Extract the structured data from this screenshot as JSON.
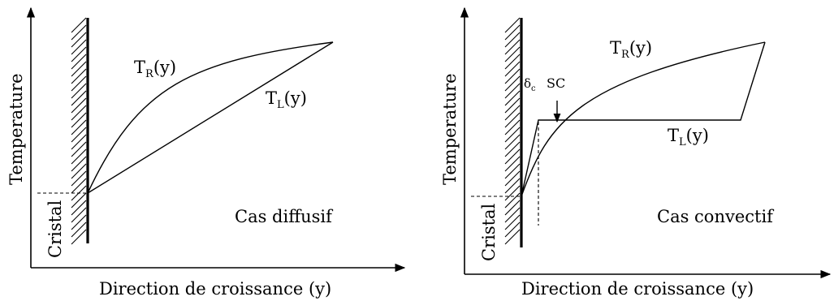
{
  "left_panel": {
    "y_axis_label": "Temperature",
    "x_axis_label": "Direction de croissance (y)",
    "crystal_label": "Cristal",
    "case_label": "Cas diffusif",
    "curve_TR": {
      "main": "T",
      "sub": "R",
      "arg": "(y)"
    },
    "curve_TL": {
      "main": "T",
      "sub": "L",
      "arg": "(y)"
    }
  },
  "right_panel": {
    "y_axis_label": "Temperature",
    "x_axis_label": "Direction de croissance (y)",
    "crystal_label": "Cristal",
    "case_label": "Cas convectif",
    "delta_label": {
      "main": "δ",
      "sub": "c"
    },
    "sc_label": "SC",
    "curve_TR": {
      "main": "T",
      "sub": "R",
      "arg": "(y)"
    },
    "curve_TL": {
      "main": "T",
      "sub": "L",
      "arg": "(y)"
    }
  }
}
